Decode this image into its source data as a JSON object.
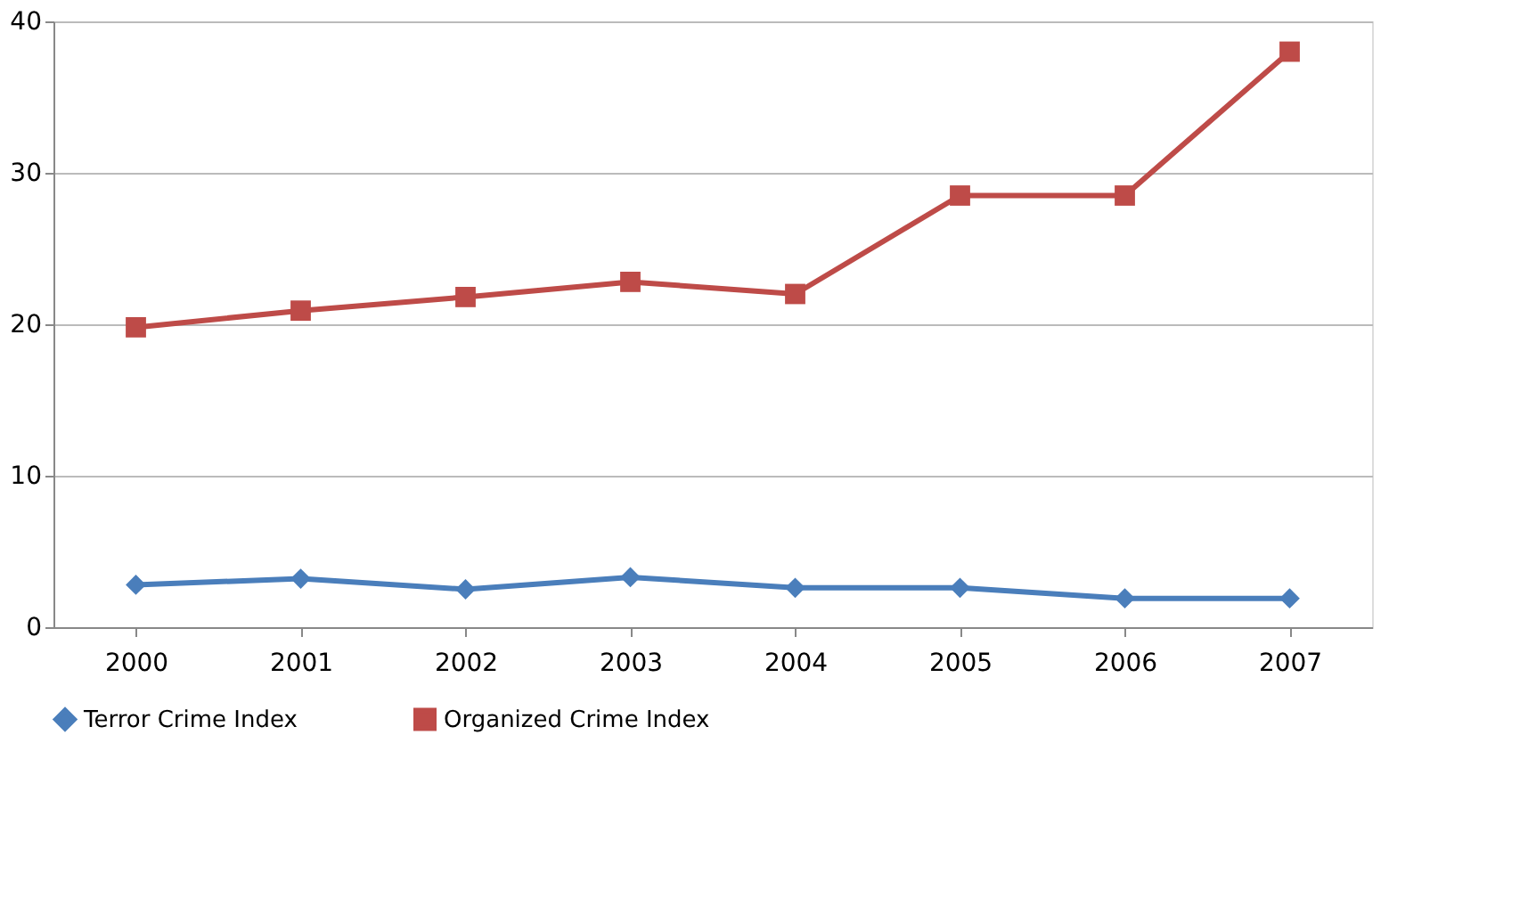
{
  "chart_data": {
    "type": "line",
    "categories": [
      "2000",
      "2001",
      "2002",
      "2003",
      "2004",
      "2005",
      "2006",
      "2007"
    ],
    "series": [
      {
        "name": "Terror Crime Index",
        "color": "#4a7ebb",
        "marker": "diamond",
        "values": [
          2.8,
          3.2,
          2.5,
          3.3,
          2.6,
          2.6,
          1.9,
          1.9
        ]
      },
      {
        "name": "Organized Crime Index",
        "color": "#be4b48",
        "marker": "square",
        "values": [
          19.8,
          20.9,
          21.8,
          22.8,
          22.0,
          28.5,
          28.5,
          38.0
        ]
      }
    ],
    "ylim": [
      0,
      40
    ],
    "yticks": [
      0,
      10,
      20,
      30,
      40
    ],
    "grid": "y",
    "legend": "bottom",
    "line_style": "solid"
  }
}
